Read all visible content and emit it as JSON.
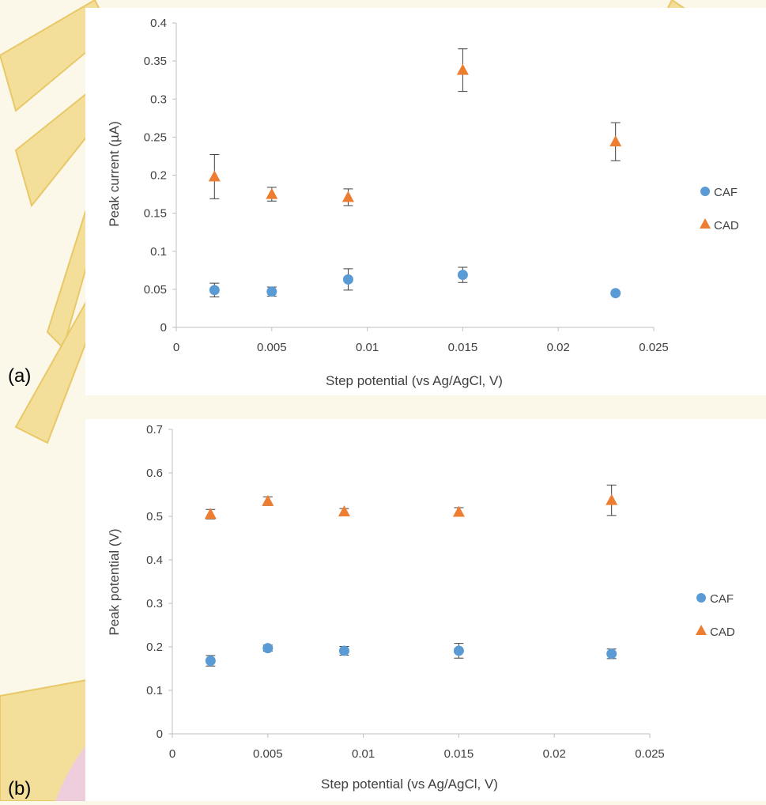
{
  "colors": {
    "caf": "#5b9bd5",
    "cad": "#ed7d31",
    "axis": "#bfbfbf",
    "text": "#404040"
  },
  "panels": {
    "a_label": "(a)",
    "b_label": "(b)"
  },
  "chart_data": [
    {
      "type": "scatter",
      "title": "",
      "xlabel": "Step potential (vs Ag/AgCl, V)",
      "ylabel": "Peak current  (µA)",
      "xlim": [
        0,
        0.025
      ],
      "ylim": [
        0,
        0.4
      ],
      "xticks": [
        "0",
        "0.005",
        "0.01",
        "0.015",
        "0.02",
        "0.025"
      ],
      "yticks": [
        "0",
        "0.05",
        "0.1",
        "0.15",
        "0.2",
        "0.25",
        "0.3",
        "0.35",
        "0.4"
      ],
      "grid": false,
      "legend": "right",
      "series": [
        {
          "name": "CAF",
          "marker": "circle",
          "x": [
            0.002,
            0.005,
            0.009,
            0.015,
            0.023
          ],
          "y": [
            0.049,
            0.047,
            0.063,
            0.069,
            0.045
          ],
          "err": [
            0.009,
            0.006,
            0.014,
            0.01,
            0.0
          ]
        },
        {
          "name": "CAD",
          "marker": "triangle",
          "x": [
            0.002,
            0.005,
            0.009,
            0.015,
            0.023
          ],
          "y": [
            0.198,
            0.175,
            0.171,
            0.338,
            0.244
          ],
          "err": [
            0.029,
            0.009,
            0.011,
            0.028,
            0.025
          ]
        }
      ]
    },
    {
      "type": "scatter",
      "title": "",
      "xlabel": "Step potential  (vs Ag/AgCl, V)",
      "ylabel": "Peak potential (V)",
      "xlim": [
        0,
        0.025
      ],
      "ylim": [
        0,
        0.7
      ],
      "xticks": [
        "0",
        "0.005",
        "0.01",
        "0.015",
        "0.02",
        "0.025"
      ],
      "yticks": [
        "0",
        "0.1",
        "0.2",
        "0.3",
        "0.4",
        "0.5",
        "0.6",
        "0.7"
      ],
      "grid": false,
      "legend": "right",
      "series": [
        {
          "name": "CAF",
          "marker": "circle",
          "x": [
            0.002,
            0.005,
            0.009,
            0.015,
            0.023
          ],
          "y": [
            0.168,
            0.197,
            0.191,
            0.191,
            0.184
          ],
          "err": [
            0.012,
            0.007,
            0.01,
            0.017,
            0.011
          ]
        },
        {
          "name": "CAD",
          "marker": "triangle",
          "x": [
            0.002,
            0.005,
            0.009,
            0.015,
            0.023
          ],
          "y": [
            0.505,
            0.535,
            0.511,
            0.51,
            0.537
          ],
          "err": [
            0.011,
            0.01,
            0.007,
            0.01,
            0.035
          ]
        }
      ]
    }
  ]
}
